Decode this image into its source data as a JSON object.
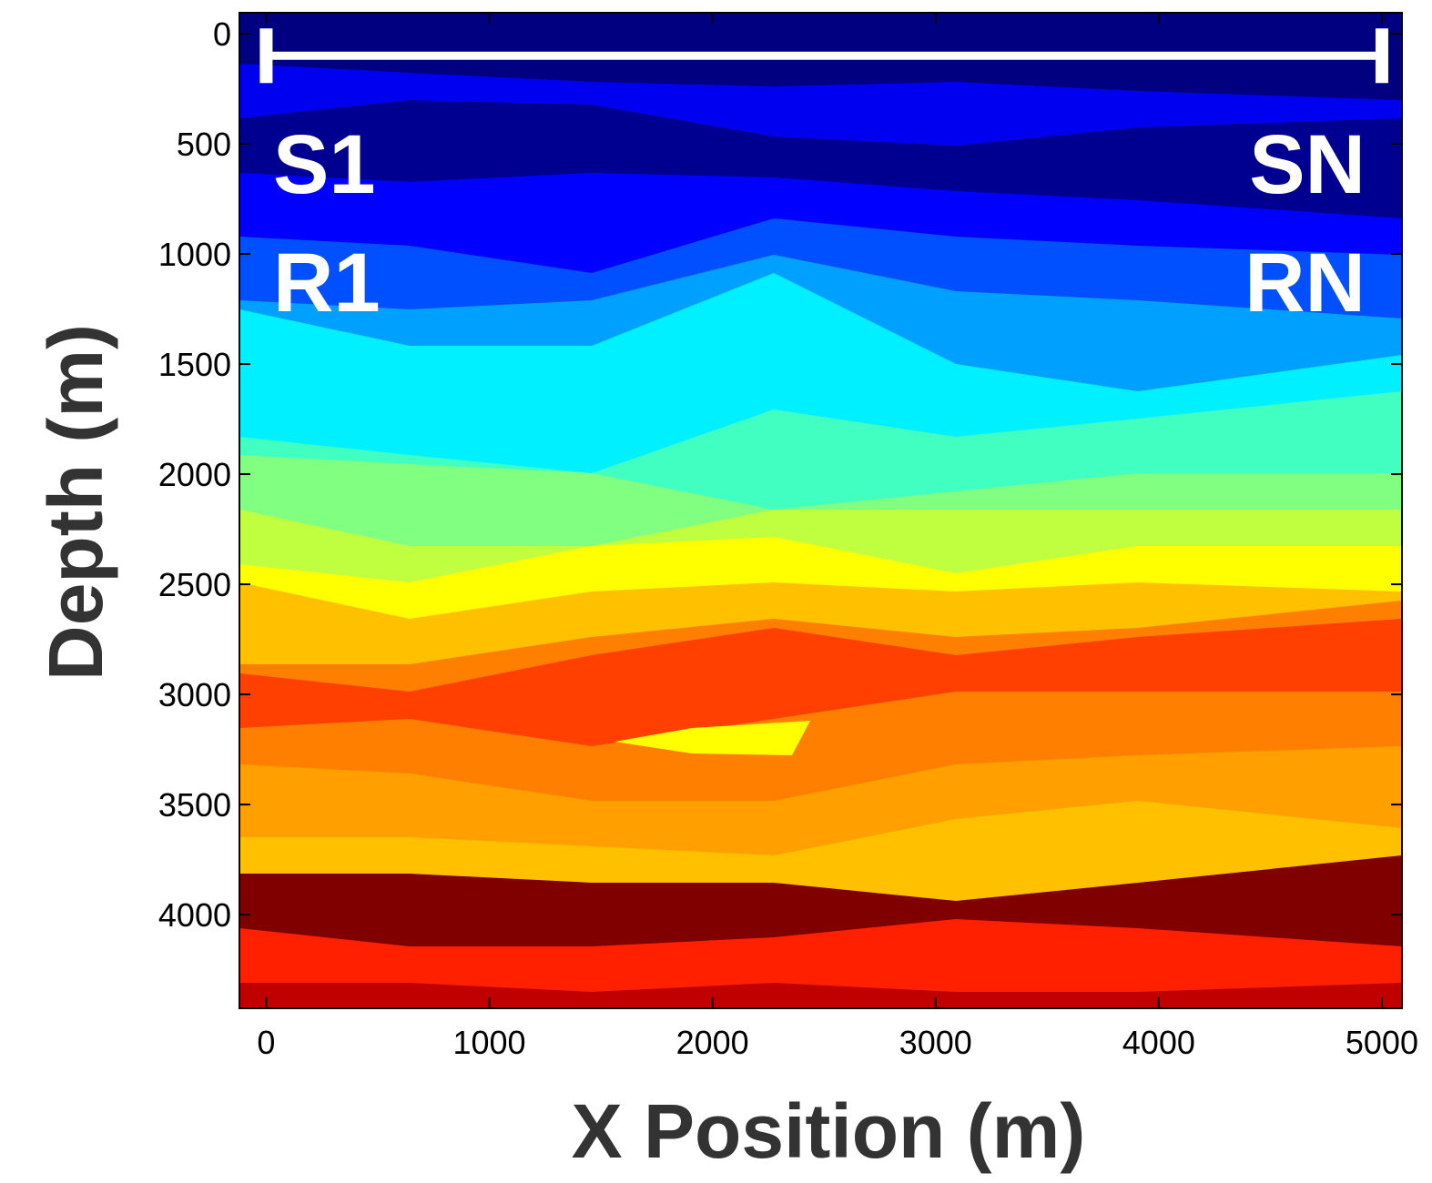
{
  "chart_data": {
    "type": "heatmap",
    "xlabel": "X Position (m)",
    "ylabel": "Depth (m)",
    "xlim": [
      -120,
      5090
    ],
    "ylim": [
      -95,
      4425
    ],
    "y_inverted": true,
    "xticks": [
      0,
      1000,
      2000,
      3000,
      4000,
      5000
    ],
    "yticks": [
      0,
      500,
      1000,
      1500,
      2000,
      2500,
      3000,
      3500,
      4000
    ],
    "acquisition_line": {
      "x": [
        0,
        5000
      ],
      "y": 100,
      "color": "#ffffff"
    },
    "annotations": [
      "S1",
      "R1",
      "SN",
      "RN"
    ]
  }
}
